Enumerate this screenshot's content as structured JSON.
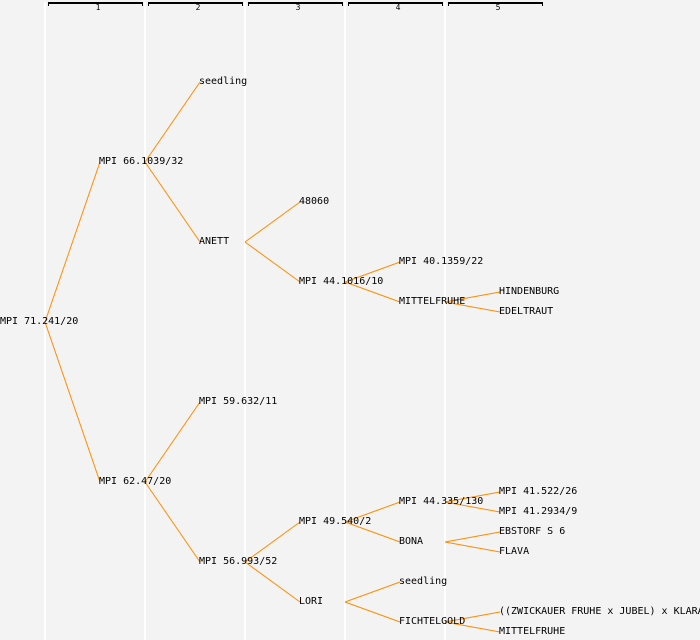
{
  "generations": [
    "1",
    "2",
    "3",
    "4",
    "5"
  ],
  "colors": {
    "edge": "#ff8c00",
    "background": "#f3f3f3"
  },
  "nodes": [
    {
      "label": "MPI 71.241/20",
      "parent": null
    },
    {
      "label": "MPI 66.1039/32",
      "parent": 0
    },
    {
      "label": "MPI 62.47/20",
      "parent": 0
    },
    {
      "label": "seedling",
      "parent": 1
    },
    {
      "label": "ANETT",
      "parent": 1
    },
    {
      "label": "MPI 59.632/11",
      "parent": 2
    },
    {
      "label": "MPI 56.993/52",
      "parent": 2
    },
    {
      "label": "48060",
      "parent": 4
    },
    {
      "label": "MPI 44.1016/10",
      "parent": 4
    },
    {
      "label": "MPI 49.540/2",
      "parent": 6
    },
    {
      "label": "LORI",
      "parent": 6
    },
    {
      "label": "MPI 40.1359/22",
      "parent": 8
    },
    {
      "label": "MITTELFRUHE",
      "parent": 8
    },
    {
      "label": "MPI 44.335/130",
      "parent": 9
    },
    {
      "label": "BONA",
      "parent": 9
    },
    {
      "label": "seedling",
      "parent": 10
    },
    {
      "label": "FICHTELGOLD",
      "parent": 10
    },
    {
      "label": "HINDENBURG",
      "parent": 12
    },
    {
      "label": "EDELTRAUT",
      "parent": 12
    },
    {
      "label": "MPI 41.522/26",
      "parent": 13
    },
    {
      "label": "MPI 41.2934/9",
      "parent": 13
    },
    {
      "label": "EBSTORF S 6",
      "parent": 14
    },
    {
      "label": "FLAVA",
      "parent": 14
    },
    {
      "label": "((ZWICKAUER FRUHE x JUBEL) x KLARA",
      "parent": 16
    },
    {
      "label": "MITTELFRUHE",
      "parent": 16
    }
  ]
}
